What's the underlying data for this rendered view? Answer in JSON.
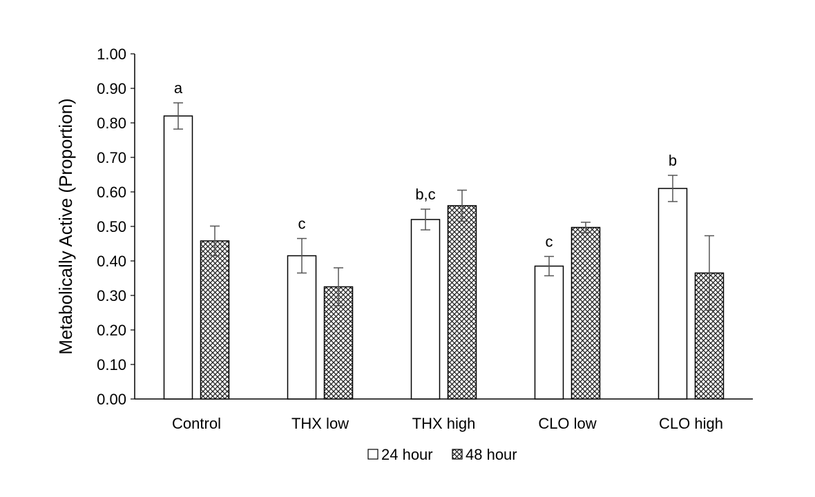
{
  "chart_data": {
    "type": "bar",
    "title": "",
    "xlabel": "",
    "ylabel": "Metabolically Active (Proportion)",
    "ylim": [
      0,
      1.0
    ],
    "yticks": [
      "0.00",
      "0.10",
      "0.20",
      "0.30",
      "0.40",
      "0.50",
      "0.60",
      "0.70",
      "0.80",
      "0.90",
      "1.00"
    ],
    "grid": false,
    "legend_position": "bottom",
    "categories": [
      "Control",
      "THX low",
      "THX high",
      "CLO low",
      "CLO high"
    ],
    "series": [
      {
        "name": "24 hour",
        "pattern": "open",
        "values": [
          0.82,
          0.415,
          0.52,
          0.385,
          0.61
        ],
        "errors": [
          0.038,
          0.05,
          0.03,
          0.028,
          0.038
        ],
        "labels": [
          "a",
          "c",
          "b,c",
          "c",
          "b"
        ]
      },
      {
        "name": "48 hour",
        "pattern": "crosshatch",
        "values": [
          0.458,
          0.325,
          0.56,
          0.497,
          0.365
        ],
        "errors": [
          0.043,
          0.055,
          0.045,
          0.015,
          0.108
        ],
        "labels": [
          "",
          "",
          "",
          "",
          ""
        ]
      }
    ]
  }
}
